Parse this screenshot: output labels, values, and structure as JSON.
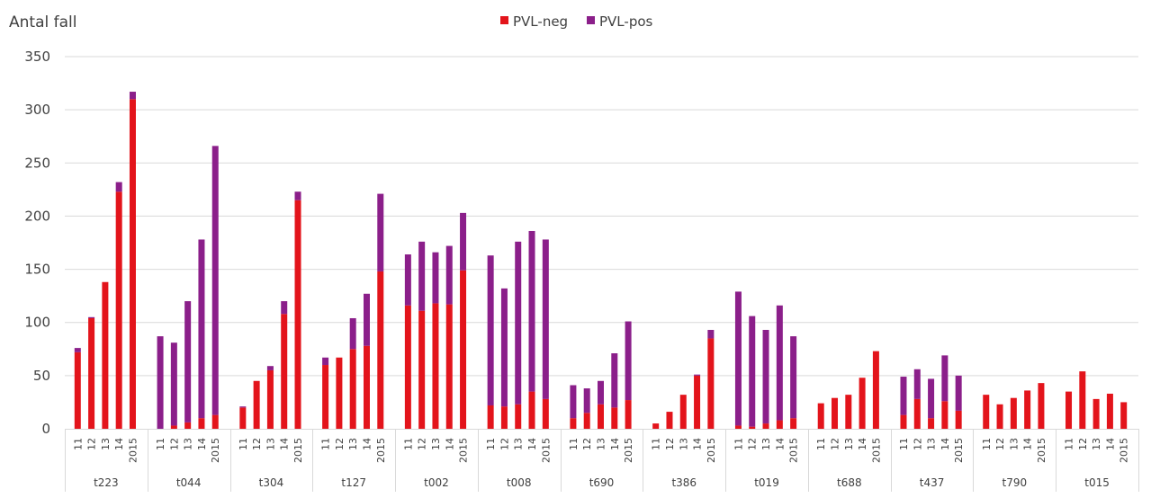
{
  "chart_data": {
    "type": "bar",
    "stacked": true,
    "ylabel": "Antal fall",
    "ylim": [
      0,
      350
    ],
    "yticks": [
      0,
      50,
      100,
      150,
      200,
      250,
      300,
      350
    ],
    "grid": true,
    "legend_position": "top",
    "year_labels": [
      "11",
      "12",
      "13",
      "14",
      "2015"
    ],
    "colors": {
      "PVL-neg": "#e3141b",
      "PVL-pos": "#8b1f8a"
    },
    "series_names": [
      "PVL-neg",
      "PVL-pos"
    ],
    "groups": [
      {
        "name": "t223",
        "neg": [
          72,
          104,
          138,
          223,
          310
        ],
        "pos": [
          4,
          1,
          0,
          9,
          7
        ]
      },
      {
        "name": "t044",
        "neg": [
          0,
          3,
          6,
          10,
          13
        ],
        "pos": [
          87,
          78,
          114,
          168,
          253
        ]
      },
      {
        "name": "t304",
        "neg": [
          20,
          45,
          55,
          108,
          215
        ],
        "pos": [
          1,
          0,
          4,
          12,
          8
        ]
      },
      {
        "name": "t127",
        "neg": [
          60,
          67,
          75,
          78,
          148
        ],
        "pos": [
          7,
          0,
          29,
          49,
          73
        ]
      },
      {
        "name": "t002",
        "neg": [
          116,
          111,
          118,
          117,
          149
        ],
        "pos": [
          48,
          65,
          48,
          55,
          54
        ]
      },
      {
        "name": "t008",
        "neg": [
          22,
          21,
          23,
          35,
          28
        ],
        "pos": [
          141,
          111,
          153,
          151,
          150
        ]
      },
      {
        "name": "t690",
        "neg": [
          10,
          15,
          23,
          20,
          27
        ],
        "pos": [
          31,
          23,
          22,
          51,
          74
        ]
      },
      {
        "name": "t386",
        "neg": [
          5,
          16,
          32,
          50,
          85
        ],
        "pos": [
          0,
          0,
          0,
          1,
          8
        ]
      },
      {
        "name": "t019",
        "neg": [
          3,
          2,
          5,
          8,
          10
        ],
        "pos": [
          126,
          104,
          88,
          108,
          77
        ]
      },
      {
        "name": "t688",
        "neg": [
          24,
          29,
          32,
          48,
          73
        ],
        "pos": [
          0,
          0,
          0,
          0,
          0
        ]
      },
      {
        "name": "t437",
        "neg": [
          13,
          28,
          10,
          26,
          17
        ],
        "pos": [
          36,
          28,
          37,
          43,
          33
        ]
      },
      {
        "name": "t790",
        "neg": [
          32,
          23,
          29,
          36,
          43
        ],
        "pos": [
          0,
          0,
          0,
          0,
          0
        ]
      },
      {
        "name": "t015",
        "neg": [
          35,
          54,
          28,
          33,
          25
        ],
        "pos": [
          0,
          0,
          0,
          0,
          0
        ]
      }
    ]
  }
}
